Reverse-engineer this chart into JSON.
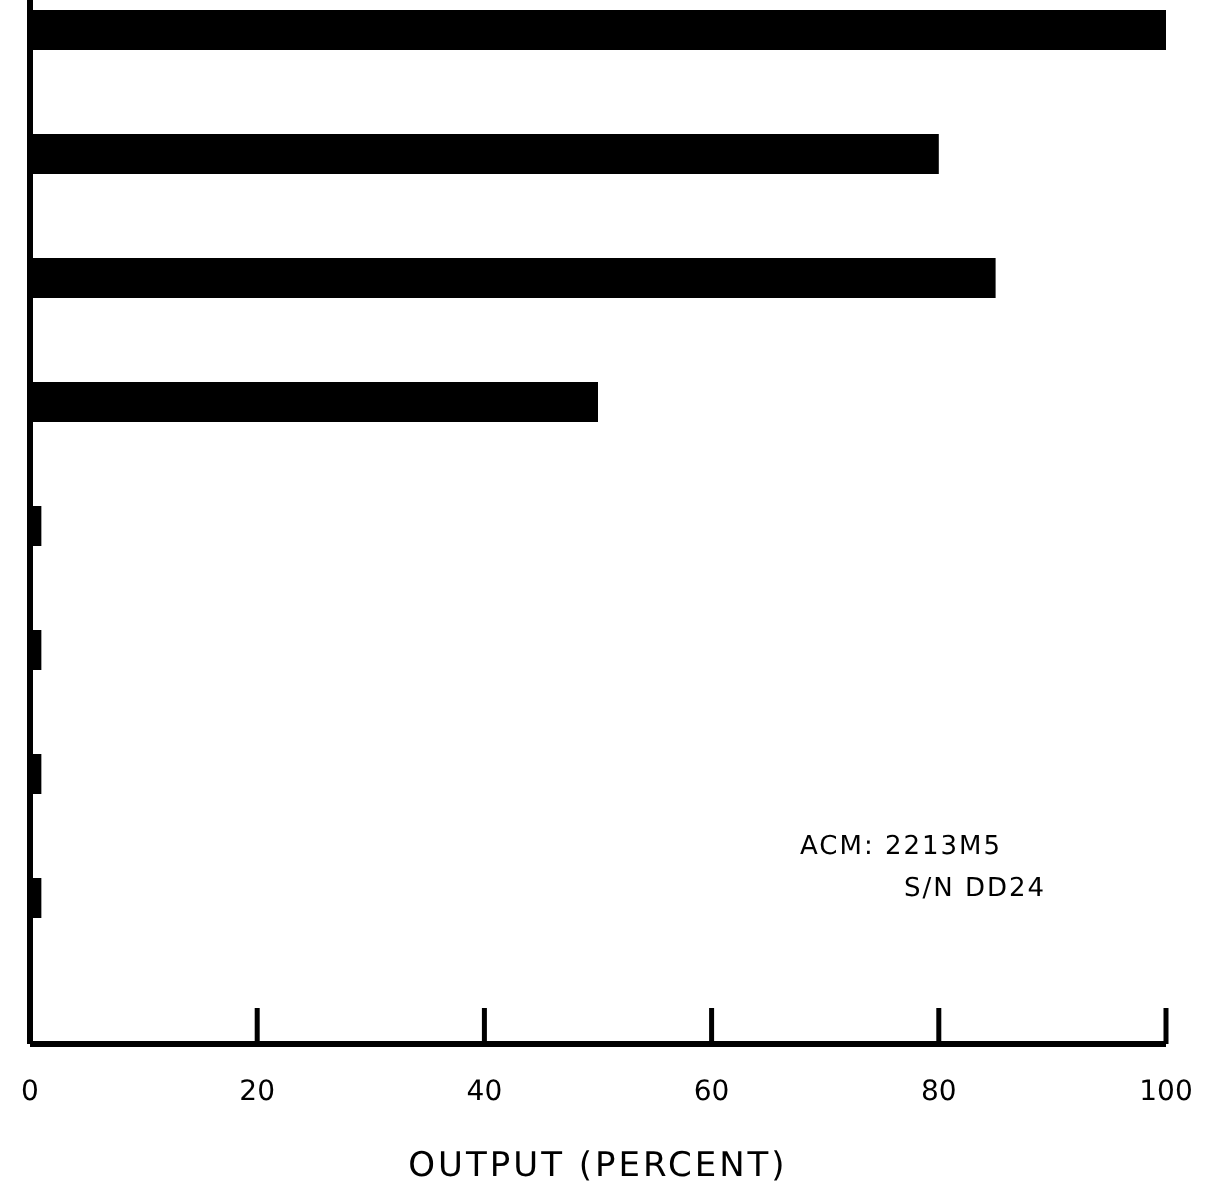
{
  "chart_data": {
    "type": "bar",
    "orientation": "horizontal",
    "xlabel": "OUTPUT (PERCENT)",
    "categories": [
      null,
      null,
      null,
      null,
      null,
      null,
      null,
      null
    ],
    "values": [
      100,
      80,
      85,
      50,
      1,
      1,
      1,
      1
    ],
    "color": "#000000",
    "xlim": [
      0,
      100
    ],
    "xticks": [
      0,
      20,
      40,
      60,
      80,
      100
    ],
    "grid": false,
    "annotations": [
      "ACM: 2213M5\nS/N DD24"
    ]
  }
}
